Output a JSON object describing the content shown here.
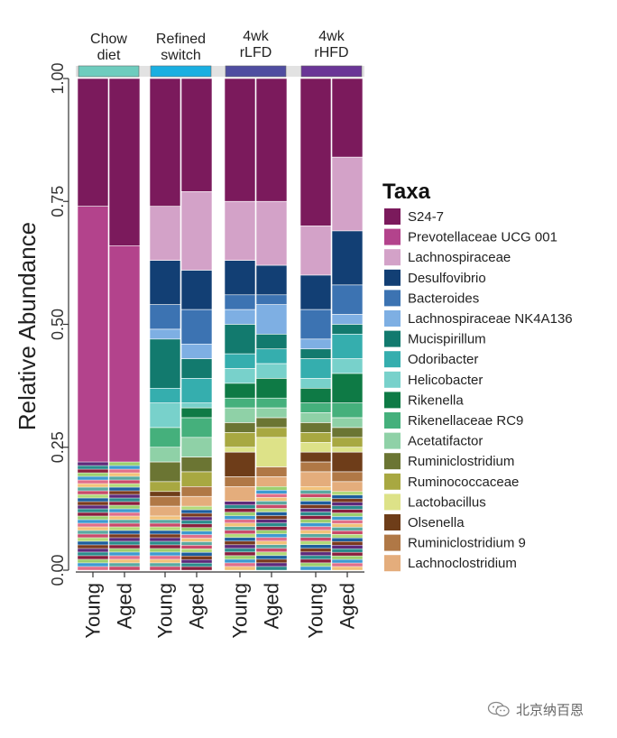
{
  "chart_data": {
    "type": "bar",
    "stacked": true,
    "ylabel": "Relative Abundance",
    "ylim": [
      0,
      1
    ],
    "yticks": [
      "0.00",
      "0.25",
      "0.50",
      "0.75",
      "1.00"
    ],
    "legend": {
      "title": "Taxa",
      "position": "right"
    },
    "groups": [
      {
        "label": [
          "Chow",
          "diet"
        ],
        "color": "#6ECCBE",
        "bars": [
          "Young",
          "Aged"
        ]
      },
      {
        "label": [
          "Refined",
          "switch"
        ],
        "color": "#1AAFE1",
        "bars": [
          "Young",
          "Aged"
        ]
      },
      {
        "label": [
          "4wk",
          "rLFD"
        ],
        "color": "#4F4DA0",
        "bars": [
          "Young",
          "Aged"
        ]
      },
      {
        "label": [
          "4wk",
          "rHFD"
        ],
        "color": "#6A3596",
        "bars": [
          "Young",
          "Aged"
        ]
      }
    ],
    "series": [
      {
        "name": "S24-7",
        "color": "#7B1A5C",
        "values": [
          0.26,
          0.34,
          0.26,
          0.23,
          0.25,
          0.25,
          0.3,
          0.16
        ]
      },
      {
        "name": "Prevotellaceae UCG 001",
        "color": "#B3438C",
        "values": [
          0.52,
          0.44,
          0.0,
          0.0,
          0.0,
          0.0,
          0.0,
          0.0
        ]
      },
      {
        "name": "Lachnospiraceae",
        "color": "#D3A2C8",
        "values": [
          0.0,
          0.0,
          0.11,
          0.16,
          0.12,
          0.13,
          0.1,
          0.15
        ]
      },
      {
        "name": "Desulfovibrio",
        "color": "#123F74",
        "values": [
          0.0,
          0.0,
          0.09,
          0.08,
          0.07,
          0.06,
          0.07,
          0.11
        ]
      },
      {
        "name": "Bacteroides",
        "color": "#3C73B2",
        "values": [
          0.0,
          0.0,
          0.05,
          0.07,
          0.03,
          0.02,
          0.06,
          0.06
        ]
      },
      {
        "name": "Lachnospiraceae NK4A136",
        "color": "#7EAFE3",
        "values": [
          0.0,
          0.0,
          0.02,
          0.03,
          0.03,
          0.06,
          0.02,
          0.02
        ]
      },
      {
        "name": "Mucispirillum",
        "color": "#127A6E",
        "values": [
          0.0,
          0.0,
          0.1,
          0.04,
          0.06,
          0.03,
          0.02,
          0.02
        ]
      },
      {
        "name": "Odoribacter",
        "color": "#35AEAE",
        "values": [
          0.0,
          0.0,
          0.03,
          0.05,
          0.03,
          0.03,
          0.04,
          0.05
        ]
      },
      {
        "name": "Helicobacter",
        "color": "#78D1CB",
        "values": [
          0.0,
          0.0,
          0.05,
          0.01,
          0.03,
          0.03,
          0.02,
          0.03
        ]
      },
      {
        "name": "Rikenella",
        "color": "#0E7A45",
        "values": [
          0.0,
          0.0,
          0.0,
          0.02,
          0.03,
          0.04,
          0.03,
          0.06
        ]
      },
      {
        "name": "Rikenellaceae RC9",
        "color": "#45B07C",
        "values": [
          0.0,
          0.0,
          0.04,
          0.04,
          0.02,
          0.02,
          0.02,
          0.03
        ]
      },
      {
        "name": "Acetatifactor",
        "color": "#8FD1A7",
        "values": [
          0.0,
          0.0,
          0.03,
          0.04,
          0.03,
          0.02,
          0.02,
          0.02
        ]
      },
      {
        "name": "Ruminiclostridium",
        "color": "#6B7533",
        "values": [
          0.0,
          0.0,
          0.04,
          0.03,
          0.02,
          0.02,
          0.02,
          0.02
        ]
      },
      {
        "name": "Ruminococcaceae",
        "color": "#A8A841",
        "values": [
          0.0,
          0.0,
          0.02,
          0.03,
          0.03,
          0.02,
          0.02,
          0.02
        ]
      },
      {
        "name": "Lactobacillus",
        "color": "#DDE288",
        "values": [
          0.0,
          0.0,
          0.0,
          0.0,
          0.01,
          0.06,
          0.02,
          0.01
        ]
      },
      {
        "name": "Olsenella",
        "color": "#6E3D19",
        "values": [
          0.0,
          0.0,
          0.01,
          0.0,
          0.05,
          0.0,
          0.02,
          0.04
        ]
      },
      {
        "name": "Ruminiclostridium 9",
        "color": "#B07846",
        "values": [
          0.0,
          0.0,
          0.02,
          0.02,
          0.02,
          0.02,
          0.02,
          0.02
        ]
      },
      {
        "name": "Lachnoclostridium",
        "color": "#E4AD7C",
        "values": [
          0.0,
          0.0,
          0.02,
          0.02,
          0.03,
          0.02,
          0.03,
          0.02
        ]
      }
    ]
  },
  "watermark": {
    "text": "北京纳百恩",
    "icon": "wechat-icon"
  }
}
